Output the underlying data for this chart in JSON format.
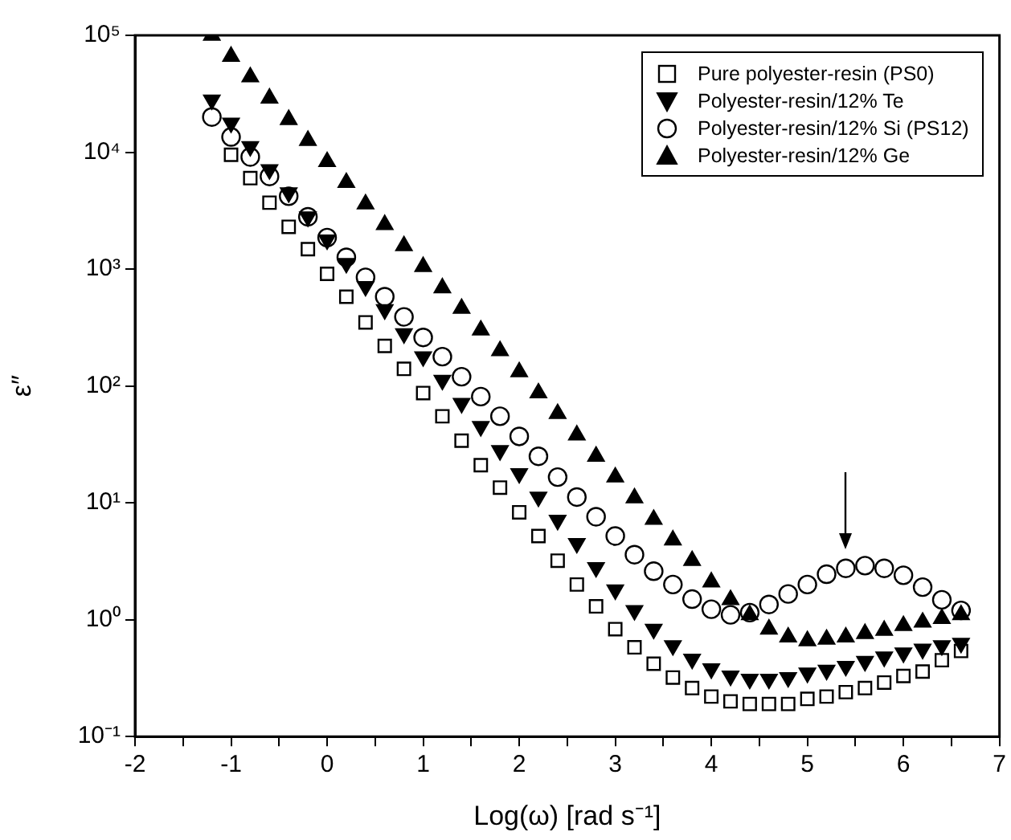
{
  "chart_data": {
    "type": "scatter",
    "xlabel": "Log(ω) [rad s⁻¹]",
    "ylabel": "ε″",
    "log": "y",
    "grid": false,
    "legend": "top right",
    "xlim": [
      -2,
      7
    ],
    "xticks": [
      -2,
      {
        "value": -1.5,
        "label": null
      },
      -1,
      {
        "value": -0.5,
        "label": null
      },
      0,
      {
        "value": 0.5,
        "label": null
      },
      1,
      {
        "value": 1.5,
        "label": null
      },
      2,
      {
        "value": 2.5,
        "label": null
      },
      3,
      {
        "value": 3.5,
        "label": null
      },
      4,
      {
        "value": 4.5,
        "label": null
      },
      5,
      {
        "value": 5.5,
        "label": null
      },
      6,
      {
        "value": 6.5,
        "label": null
      },
      7
    ],
    "ylim": [
      0.1,
      100000
    ],
    "yticks": [
      {
        "value": 0.1,
        "label": "10⁻¹"
      },
      {
        "value": 1,
        "label": "10⁰"
      },
      {
        "value": 10,
        "label": "10¹"
      },
      {
        "value": 100,
        "label": "10²"
      },
      {
        "value": 1000,
        "label": "10³"
      },
      {
        "value": 10000,
        "label": "10⁴"
      },
      {
        "value": 100000,
        "label": "10⁵"
      }
    ],
    "series": [
      {
        "name": "Pure polyester-resin (PS0)",
        "color": "#000000",
        "marker": "square",
        "x": [
          -1.0,
          -0.8,
          -0.6,
          -0.4,
          -0.2,
          0,
          0.2,
          0.4,
          0.6,
          0.8,
          1.0,
          1.2,
          1.4,
          1.6,
          1.8,
          2.0,
          2.2,
          2.4,
          2.6,
          2.8,
          3.0,
          3.2,
          3.4,
          3.6,
          3.8,
          4.0,
          4.2,
          4.4,
          4.6,
          4.8,
          5.0,
          5.2,
          5.4,
          5.6,
          5.8,
          6.0,
          6.2,
          6.4,
          6.6
        ],
        "values": [
          9500,
          6000,
          3700,
          2300,
          1480,
          910,
          580,
          350,
          220,
          140,
          87,
          55,
          34,
          21,
          13.5,
          8.3,
          5.2,
          3.2,
          2.0,
          1.3,
          0.83,
          0.58,
          0.42,
          0.32,
          0.26,
          0.22,
          0.2,
          0.19,
          0.19,
          0.19,
          0.21,
          0.22,
          0.24,
          0.26,
          0.29,
          0.33,
          0.36,
          0.45,
          0.54
        ]
      },
      {
        "name": "Polyester-resin/12% Te",
        "color": "#000000",
        "marker": "triangle-down",
        "x": [
          -1.2,
          -1.0,
          -0.8,
          -0.6,
          -0.4,
          -0.2,
          0,
          0.2,
          0.4,
          0.6,
          0.8,
          1.0,
          1.2,
          1.4,
          1.6,
          1.8,
          2.0,
          2.2,
          2.4,
          2.6,
          2.8,
          3.0,
          3.2,
          3.4,
          3.6,
          3.8,
          4.0,
          4.2,
          4.4,
          4.6,
          4.8,
          5.0,
          5.2,
          5.4,
          5.6,
          5.8,
          6.0,
          6.2,
          6.4,
          6.6
        ],
        "values": [
          28000,
          17800,
          11200,
          7100,
          4500,
          2800,
          1780,
          1120,
          710,
          450,
          280,
          178,
          112,
          71,
          45,
          28,
          17.8,
          11.2,
          7.1,
          4.5,
          2.8,
          1.8,
          1.2,
          0.83,
          0.6,
          0.46,
          0.38,
          0.33,
          0.31,
          0.31,
          0.32,
          0.35,
          0.37,
          0.4,
          0.44,
          0.48,
          0.52,
          0.56,
          0.6,
          0.63
        ]
      },
      {
        "name": "Polyester-resin/12% Si (PS12)",
        "color": "#000000",
        "marker": "circle",
        "x": [
          -1.2,
          -1.0,
          -0.8,
          -0.6,
          -0.4,
          -0.2,
          0,
          0.2,
          0.4,
          0.6,
          0.8,
          1.0,
          1.2,
          1.4,
          1.6,
          1.8,
          2.0,
          2.2,
          2.4,
          2.6,
          2.8,
          3.0,
          3.2,
          3.4,
          3.6,
          3.8,
          4.0,
          4.2,
          4.4,
          4.6,
          4.8,
          5.0,
          5.2,
          5.4,
          5.6,
          5.8,
          6.0,
          6.2,
          6.4,
          6.6
        ],
        "values": [
          20000,
          13500,
          9100,
          6200,
          4200,
          2800,
          1860,
          1260,
          850,
          580,
          390,
          260,
          178,
          120,
          81,
          55,
          37,
          25,
          16.6,
          11.2,
          7.6,
          5.2,
          3.6,
          2.6,
          2.0,
          1.5,
          1.23,
          1.1,
          1.15,
          1.35,
          1.66,
          2.0,
          2.45,
          2.75,
          2.9,
          2.75,
          2.4,
          1.9,
          1.48,
          1.2
        ]
      },
      {
        "name": "Polyester-resin/12% Ge",
        "color": "#000000",
        "marker": "triangle",
        "x": [
          -1.2,
          -1.0,
          -0.8,
          -0.6,
          -0.4,
          -0.2,
          0,
          0.2,
          0.4,
          0.6,
          0.8,
          1.0,
          1.2,
          1.4,
          1.6,
          1.8,
          2.0,
          2.2,
          2.4,
          2.6,
          2.8,
          3.0,
          3.2,
          3.4,
          3.6,
          3.8,
          4.0,
          4.2,
          4.4,
          4.6,
          4.8,
          5.0,
          5.2,
          5.4,
          5.6,
          5.8,
          6.0,
          6.2,
          6.4,
          6.6
        ],
        "values": [
          100000,
          66000,
          44000,
          29000,
          19000,
          12600,
          8300,
          5500,
          3600,
          2400,
          1580,
          1050,
          690,
          460,
          300,
          200,
          132,
          87,
          58,
          38,
          25,
          16.6,
          11,
          7.2,
          4.8,
          3.2,
          2.1,
          1.48,
          1.1,
          0.83,
          0.71,
          0.66,
          0.68,
          0.71,
          0.76,
          0.81,
          0.89,
          0.95,
          1.02,
          1.1
        ]
      }
    ]
  }
}
